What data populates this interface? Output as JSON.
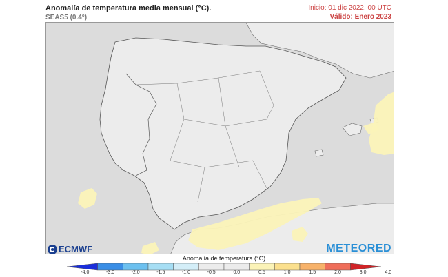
{
  "header": {
    "title": "Anomalía de temperatura media mensual (°C).",
    "subtitle": "SEAS5 (0.4°)",
    "init": "Inicio: 01 dic 2022, 00 UTC",
    "valid": "Válido: Enero 2023"
  },
  "logos": {
    "left": "ECMWF",
    "right": "METEORED"
  },
  "legend": {
    "label": "Anomalía de temperatura (°C)",
    "ticks": [
      "-4.0",
      "-3.0",
      "-2.0",
      "-1.5",
      "-1.0",
      "-0.5",
      "0.0",
      "0.5",
      "1.0",
      "1.5",
      "2.0",
      "3.0",
      "4.0"
    ],
    "colors": [
      "#1a2edb",
      "#3a8ee6",
      "#6cc0ef",
      "#a6def4",
      "#d4eef8",
      "#ececec",
      "#ececec",
      "#fbf3b8",
      "#fbe08e",
      "#f7b26a",
      "#ef6e5a",
      "#d12428"
    ]
  },
  "colors": {
    "land": "#ececec",
    "sea": "#dcdcdc",
    "anomaly_positive": "#fbf3b8",
    "borders": "#555555"
  }
}
